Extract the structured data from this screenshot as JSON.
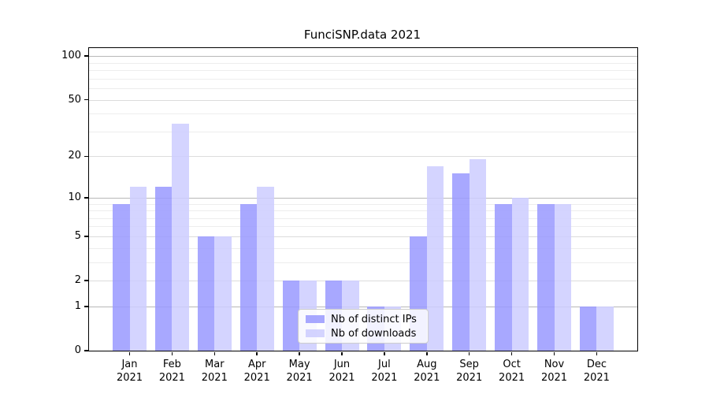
{
  "title": "FunciSNP.data 2021",
  "chart_data": {
    "type": "bar",
    "title": "FunciSNP.data 2021",
    "categories": [
      "Jan",
      "Feb",
      "Mar",
      "Apr",
      "May",
      "Jun",
      "Jul",
      "Aug",
      "Sep",
      "Oct",
      "Nov",
      "Dec"
    ],
    "x_tick_year": "2021",
    "series": [
      {
        "name": "Nb of distinct IPs",
        "color": "#9999ff",
        "values": [
          9,
          12,
          5,
          9,
          2,
          2,
          1,
          5,
          15,
          9,
          9,
          1
        ]
      },
      {
        "name": "Nb of downloads",
        "color": "#ccccff",
        "values": [
          12,
          34,
          5,
          12,
          2,
          2,
          1,
          17,
          19,
          10,
          9,
          1
        ]
      }
    ],
    "xlabel": "",
    "ylabel": "",
    "yscale": "log1p",
    "ylim": [
      0,
      113
    ],
    "yticks": [
      0,
      1,
      2,
      5,
      10,
      20,
      50,
      100
    ],
    "yticks_emphasized": [
      1,
      10,
      100
    ],
    "minor_gridlines": [
      3,
      4,
      6,
      7,
      8,
      9,
      30,
      40,
      60,
      70,
      80,
      90
    ],
    "grid": "on",
    "legend_position": "lower center"
  }
}
